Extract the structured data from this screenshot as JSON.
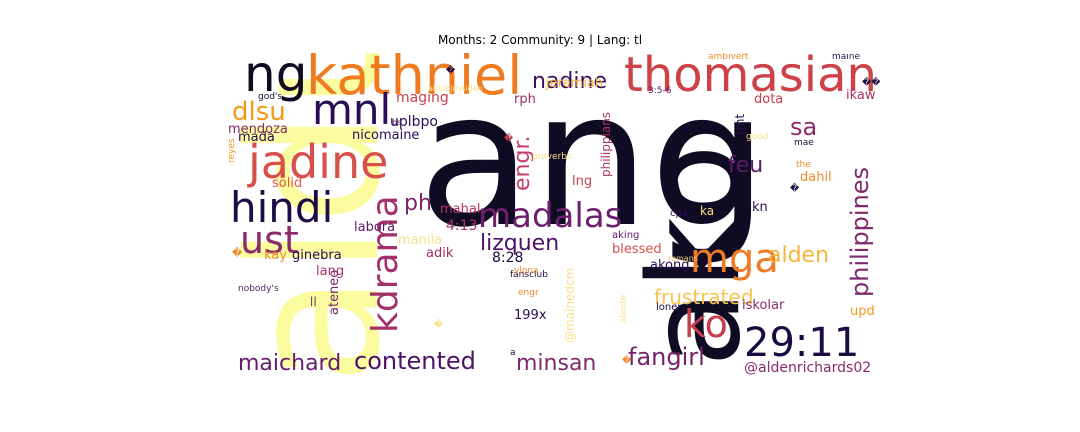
{
  "figure": {
    "title": "Months: 2 Community: 9 | Lang: tl"
  },
  "words": [
    {
      "text": "ang",
      "color": "#0e0b22"
    },
    {
      "text": "aldub",
      "color": "#fbfca0"
    },
    {
      "text": "ako",
      "color": "#0e0b22"
    },
    {
      "text": "kathniel",
      "color": "#ef7b20"
    },
    {
      "text": "thomasian",
      "color": "#cc4248"
    },
    {
      "text": "ng",
      "color": "#0e0b22"
    },
    {
      "text": "jadine",
      "color": "#d8504a"
    },
    {
      "text": "mnl",
      "color": "#2a0d55"
    },
    {
      "text": "hindi",
      "color": "#1e0c45"
    },
    {
      "text": "ust",
      "color": "#8c2a6c"
    },
    {
      "text": "kdrama",
      "color": "#a2306a"
    },
    {
      "text": "madalas",
      "color": "#6d1f6e"
    },
    {
      "text": "mga",
      "color": "#f07b26"
    },
    {
      "text": "ko",
      "color": "#c53e4c"
    },
    {
      "text": "29:11",
      "color": "#1c0b40"
    },
    {
      "text": "philippines",
      "color": "#7e2a6b"
    },
    {
      "text": "nadine",
      "color": "#3a0f62"
    },
    {
      "text": "dlsu",
      "color": "#f29a1a"
    },
    {
      "text": "sa",
      "color": "#8c2a6c"
    },
    {
      "text": "feu",
      "color": "#5b1a6b"
    },
    {
      "text": "engr.",
      "color": "#c3406a"
    },
    {
      "text": "ph",
      "color": "#7a2566"
    },
    {
      "text": "lizquen",
      "color": "#4c1266"
    },
    {
      "text": "alden",
      "color": "#f6b43a"
    },
    {
      "text": "frustrated",
      "color": "#f8c34e"
    },
    {
      "text": "fangirl",
      "color": "#75226a"
    },
    {
      "text": "contented",
      "color": "#4c1266"
    },
    {
      "text": "maichard",
      "color": "#641d6a"
    },
    {
      "text": "minsan",
      "color": "#7d2a6b"
    },
    {
      "text": "@aldenrichards02",
      "color": "#8a2c6a"
    },
    {
      "text": "uplbpo",
      "color": "#2a0d55"
    },
    {
      "text": "maging",
      "color": "#c73e4d"
    },
    {
      "text": "mendoza",
      "color": "#7e2a6b"
    },
    {
      "text": "mada",
      "color": "#2a0d55"
    },
    {
      "text": "nicomaine",
      "color": "#2a0d55"
    },
    {
      "text": "solid",
      "color": "#e2593f"
    },
    {
      "text": "labora",
      "color": "#5b1a6b"
    },
    {
      "text": "ginebra",
      "color": "#2a0d55"
    },
    {
      "text": "kay",
      "color": "#f08a2c"
    },
    {
      "text": "lang",
      "color": "#a83465"
    },
    {
      "text": "ateneo",
      "color": "#7a2566"
    },
    {
      "text": "4:13",
      "color": "#a8345f"
    },
    {
      "text": "8:28",
      "color": "#1c0b40"
    },
    {
      "text": "adik",
      "color": "#9c2e66"
    },
    {
      "text": "manila",
      "color": "#fbe08a"
    },
    {
      "text": "mahal",
      "color": "#b8355e"
    },
    {
      "text": "lng",
      "color": "#c53e4c"
    },
    {
      "text": "rph",
      "color": "#9c2e66"
    },
    {
      "text": "jeremiah",
      "color": "#f6b43a"
    },
    {
      "text": "philippians",
      "color": "#a8345f"
    },
    {
      "text": "dota",
      "color": "#c53e4c"
    },
    {
      "text": "ikaw",
      "color": "#a8345f"
    },
    {
      "text": "rmt",
      "color": "#2a0d55"
    },
    {
      "text": "dahil",
      "color": "#f08a2c"
    },
    {
      "text": "kn",
      "color": "#2a0d55"
    },
    {
      "text": "ka",
      "color": "#fbe08a"
    },
    {
      "text": "blessed",
      "color": "#d8504a"
    },
    {
      "text": "akong",
      "color": "#2a0d55"
    },
    {
      "text": "upd",
      "color": "#f29a1a"
    },
    {
      "text": "iskolar",
      "color": "#8a2c6a"
    },
    {
      "text": "199x",
      "color": "#2a0d55"
    },
    {
      "text": "@mainedcm",
      "color": "#fbe08a"
    },
    {
      "text": "alonte",
      "color": "#fbe08a"
    },
    {
      "text": "loner",
      "color": "#1c0b40"
    },
    {
      "text": "aking",
      "color": "#5b1a6b"
    },
    {
      "text": "romans",
      "color": "#f6c670"
    },
    {
      "text": "fansclub",
      "color": "#1c0b40"
    },
    {
      "text": "ylona",
      "color": "#f08a2c"
    },
    {
      "text": "cpa",
      "color": "#2a0d55"
    },
    {
      "text": "engr",
      "color": "#f08a2c"
    },
    {
      "text": "proverbs",
      "color": "#fbe08a"
    },
    {
      "text": "mae",
      "color": "#1c0b40"
    },
    {
      "text": "the",
      "color": "#f08a2c"
    },
    {
      "text": "good",
      "color": "#fbe08a"
    },
    {
      "text": "3:5-6",
      "color": "#5b1a6b"
    },
    {
      "text": "ambivert",
      "color": "#f08a2c"
    },
    {
      "text": "maine",
      "color": "#2a0d55"
    },
    {
      "text": "aldubjmaiden",
      "color": "#fbe08a"
    },
    {
      "text": "god's",
      "color": "#1c0b40"
    },
    {
      "text": "reyes",
      "color": "#f29a1a"
    },
    {
      "text": "bs",
      "color": "#5b1a6b"
    },
    {
      "text": "ig:",
      "color": "#1c0b40"
    },
    {
      "text": "nobody's",
      "color": "#5b1a6b"
    },
    {
      "text": "||",
      "color": "#1c0b40"
    },
    {
      "text": "a",
      "color": "#1c0b40"
    },
    {
      "text": "�",
      "color": "#c53e4c"
    },
    {
      "text": "�",
      "color": "#1c0b40"
    },
    {
      "text": "�",
      "color": "#f08a2c"
    },
    {
      "text": "�",
      "color": "#fbe08a"
    },
    {
      "text": "�",
      "color": "#f08a2c"
    },
    {
      "text": "�",
      "color": "#1c0b40"
    },
    {
      "text": "��",
      "color": "#1c0b40"
    }
  ]
}
